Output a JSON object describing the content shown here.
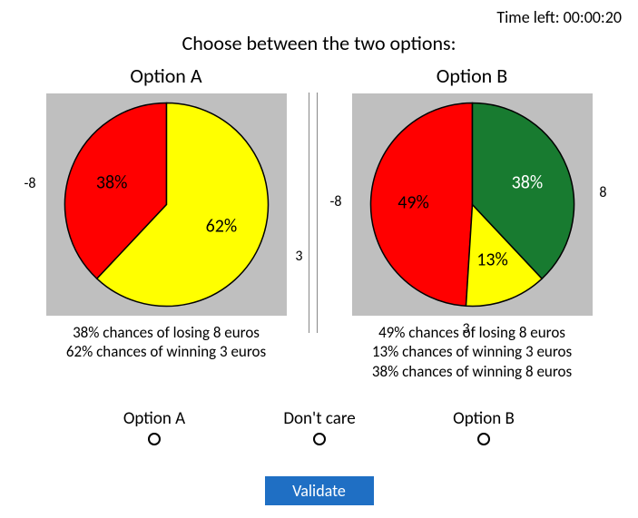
{
  "timer": {
    "label": "Time left:",
    "value": "00:00:20"
  },
  "prompt": "Choose between the two options:",
  "colors": {
    "panel_bg": "#bfbfbf",
    "outline": "#000000",
    "red": "#ff0000",
    "yellow": "#ffff00",
    "green": "#187b30",
    "button_bg": "#1f6fc4",
    "button_text": "#ffffff",
    "text": "#000000"
  },
  "optionA": {
    "title": "Option A",
    "chart": {
      "type": "pie",
      "radius": 112,
      "label_color_inside": "#000000",
      "slices": [
        {
          "value": 38,
          "color": "#ff0000",
          "label": "38%",
          "outer_label": "-8"
        },
        {
          "value": 62,
          "color": "#ffff00",
          "label": "62%",
          "outer_label": "3"
        }
      ]
    },
    "desc_lines": [
      "38% chances of losing 8 euros",
      "62% chances of winning 3 euros"
    ]
  },
  "optionB": {
    "title": "Option B",
    "chart": {
      "type": "pie",
      "radius": 112,
      "label_color_inside": "#000000",
      "slices": [
        {
          "value": 49,
          "color": "#ff0000",
          "label": "49%",
          "outer_label": "-8"
        },
        {
          "value": 13,
          "color": "#ffff00",
          "label": "13%",
          "outer_label": "3"
        },
        {
          "value": 38,
          "color": "#187b30",
          "label": "38%",
          "outer_label": "8",
          "label_color": "#ffffff"
        }
      ]
    },
    "desc_lines": [
      "49% chances of losing 8 euros",
      "13% chances of winning 3 euros",
      "38% chances of winning 8 euros"
    ]
  },
  "choices": {
    "a": "Option A",
    "mid": "Don't care",
    "b": "Option B"
  },
  "validate_label": "Validate",
  "fonts": {
    "title": 22,
    "prompt": 22,
    "timer": 18,
    "slice_label": 20,
    "outer_label": 16,
    "desc": 17,
    "choice": 19,
    "button": 18
  }
}
